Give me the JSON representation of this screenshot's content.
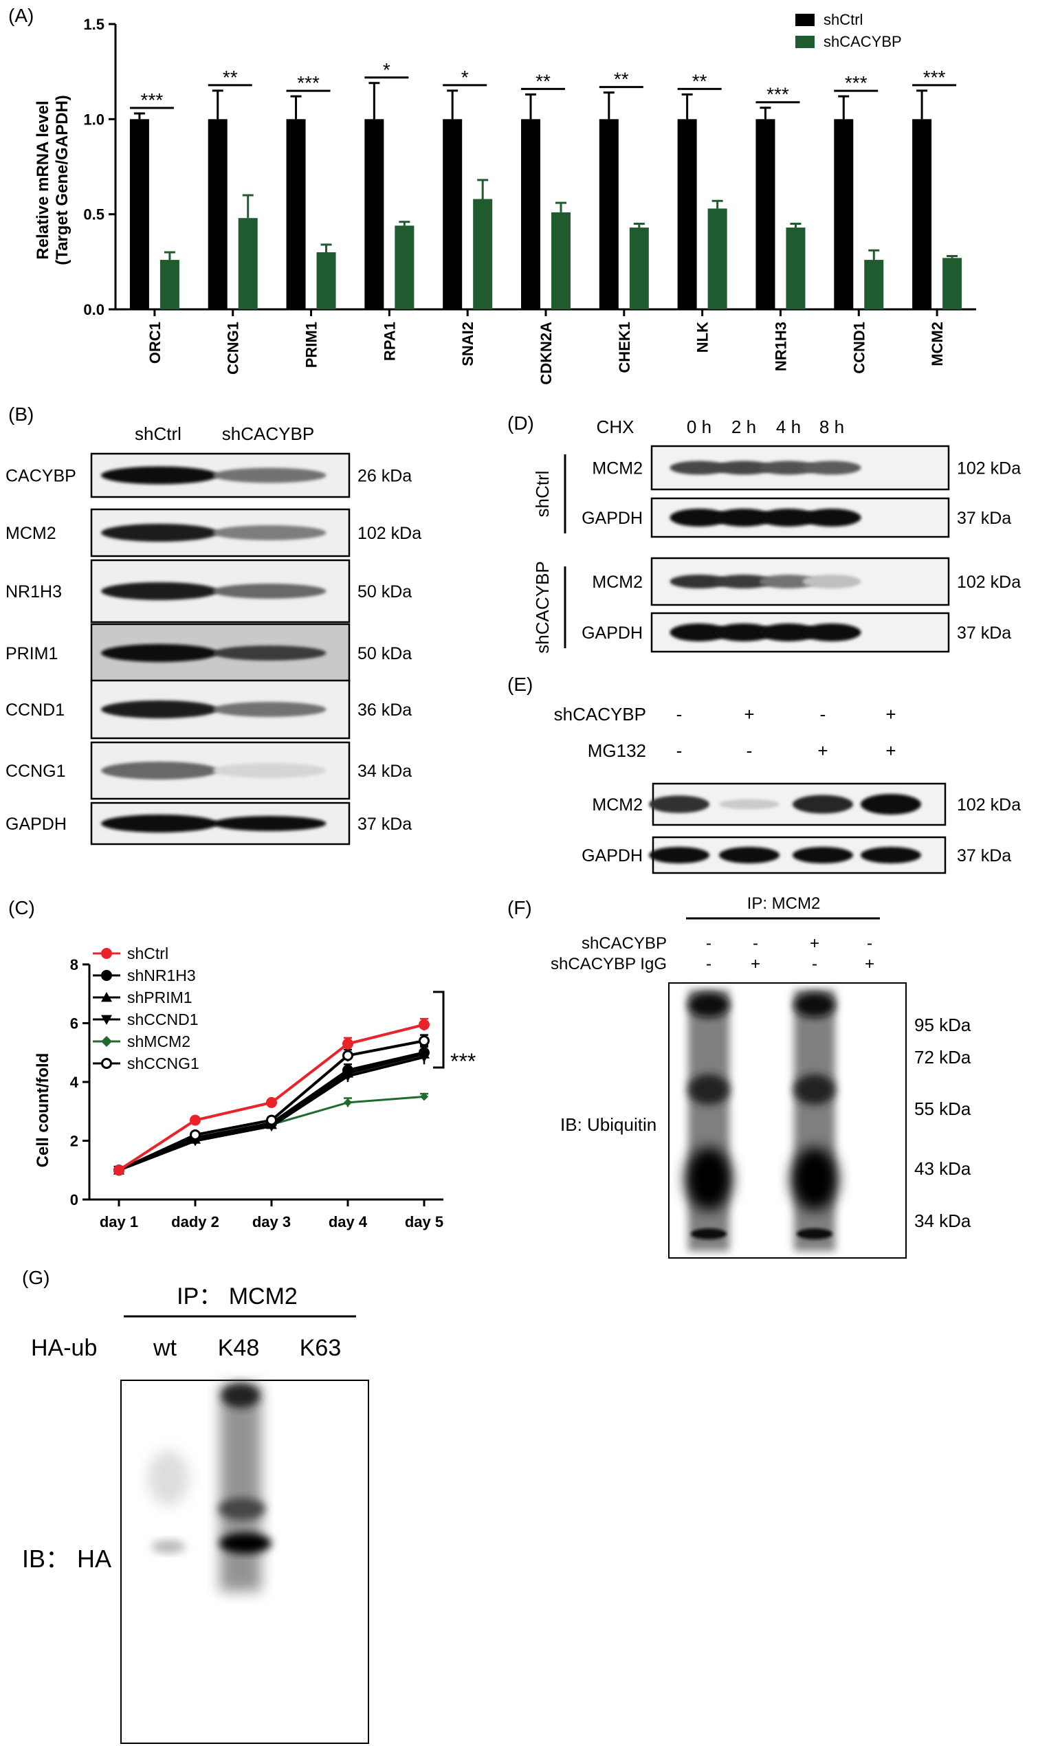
{
  "panels": {
    "A": {
      "label": "(A)",
      "ylabel_line1": "Relative mRNA level",
      "ylabel_line2": "(Target Gene/GAPDH)",
      "legend": [
        {
          "name": "shCtrl",
          "color": "#000000"
        },
        {
          "name": "shCACYBP",
          "color": "#1f5b2e"
        }
      ]
    },
    "B": {
      "label": "(B)",
      "cols": [
        "shCtrl",
        "shCACYBP"
      ],
      "rows": [
        {
          "name": "CACYBP",
          "size": "26 kDa",
          "ctrl": 1.0,
          "kd": 0.55
        },
        {
          "name": "MCM2",
          "size": "102 kDa",
          "ctrl": 0.95,
          "kd": 0.5
        },
        {
          "name": "NR1H3",
          "size": "50 kDa",
          "ctrl": 0.95,
          "kd": 0.6
        },
        {
          "name": "PRIM1",
          "size": "50 kDa",
          "ctrl": 1.0,
          "kd": 0.8
        },
        {
          "name": "CCND1",
          "size": "36 kDa",
          "ctrl": 0.95,
          "kd": 0.55
        },
        {
          "name": "CCNG1",
          "size": "34 kDa",
          "ctrl": 0.6,
          "kd": 0.1
        },
        {
          "name": "GAPDH",
          "size": "37 kDa",
          "ctrl": 1.0,
          "kd": 1.0
        }
      ]
    },
    "C": {
      "label": "(C)",
      "significance": "***"
    },
    "D": {
      "label": "(D)",
      "treatment": "CHX",
      "times": [
        "0 h",
        "2 h",
        "4 h",
        "8 h"
      ],
      "groups": [
        {
          "name": "shCtrl",
          "blots": [
            {
              "name": "MCM2",
              "size": "102 kDa",
              "intensity": [
                0.75,
                0.75,
                0.7,
                0.65
              ]
            },
            {
              "name": "GAPDH",
              "size": "37 kDa",
              "intensity": [
                1.0,
                1.0,
                1.0,
                1.0
              ]
            }
          ]
        },
        {
          "name": "shCACYBP",
          "blots": [
            {
              "name": "MCM2",
              "size": "102 kDa",
              "intensity": [
                0.85,
                0.8,
                0.55,
                0.2
              ]
            },
            {
              "name": "GAPDH",
              "size": "37 kDa",
              "intensity": [
                1.0,
                1.0,
                1.0,
                1.0
              ]
            }
          ]
        }
      ]
    },
    "E": {
      "label": "(E)",
      "conditions": [
        {
          "name": "shCACYBP",
          "signs": [
            "-",
            "+",
            "-",
            "+"
          ]
        },
        {
          "name": "MG132",
          "signs": [
            "-",
            "-",
            "+",
            "+"
          ]
        }
      ],
      "blots": [
        {
          "name": "MCM2",
          "size": "102 kDa",
          "intensity": [
            0.85,
            0.15,
            0.9,
            1.0
          ]
        },
        {
          "name": "GAPDH",
          "size": "37 kDa",
          "intensity": [
            1.0,
            1.0,
            1.0,
            1.0
          ]
        }
      ]
    },
    "F": {
      "label": "(F)",
      "ip": "IP: MCM2",
      "conditions": [
        {
          "name": "shCACYBP",
          "signs": [
            "-",
            "-",
            "+",
            "-"
          ]
        },
        {
          "name": "shCACYBP IgG",
          "signs": [
            "-",
            "+",
            "-",
            "+"
          ]
        }
      ],
      "ib": "IB: Ubiquitin",
      "markers": [
        "95 kDa",
        "72 kDa",
        "55 kDa",
        "43 kDa",
        "34 kDa"
      ]
    },
    "G": {
      "label": "(G)",
      "ip": "IP： MCM2",
      "row_label": "HA-ub",
      "lanes": [
        "wt",
        "K48",
        "K63"
      ],
      "ib": "IB： HA"
    }
  },
  "chart_data": [
    {
      "panel": "A",
      "type": "bar",
      "categories": [
        "ORC1",
        "CCNG1",
        "PRIM1",
        "RPA1",
        "SNAI2",
        "CDKN2A",
        "CHEK1",
        "NLK",
        "NR1H3",
        "CCND1",
        "MCM2"
      ],
      "series": [
        {
          "name": "shCtrl",
          "values": [
            1.0,
            1.0,
            1.0,
            1.0,
            1.0,
            1.0,
            1.0,
            1.0,
            1.0,
            1.0,
            1.0
          ],
          "errors": [
            0.03,
            0.15,
            0.12,
            0.19,
            0.15,
            0.13,
            0.14,
            0.13,
            0.06,
            0.12,
            0.15
          ]
        },
        {
          "name": "shCACYBP",
          "values": [
            0.26,
            0.48,
            0.3,
            0.44,
            0.58,
            0.51,
            0.43,
            0.53,
            0.43,
            0.26,
            0.27
          ],
          "errors": [
            0.04,
            0.12,
            0.04,
            0.02,
            0.1,
            0.05,
            0.02,
            0.04,
            0.02,
            0.05,
            0.01
          ]
        }
      ],
      "significance": [
        "***",
        "**",
        "***",
        "*",
        "*",
        "**",
        "**",
        "**",
        "***",
        "***",
        "***"
      ],
      "ylim": [
        0,
        1.5
      ],
      "yticks": [
        "0.0",
        "0.5",
        "1.0",
        "1.5"
      ]
    },
    {
      "panel": "C",
      "type": "line",
      "xlabel": "",
      "ylabel": "Cell count/fold",
      "categories": [
        "day 1",
        "dady 2",
        "day 3",
        "day 4",
        "day 5"
      ],
      "ylim": [
        0,
        8
      ],
      "yticks": [
        "0",
        "2",
        "4",
        "6",
        "8"
      ],
      "series": [
        {
          "name": "shCtrl",
          "color": "#e8232a",
          "marker": "circle",
          "values": [
            1.0,
            2.7,
            3.3,
            5.3,
            5.95
          ],
          "errors": [
            0,
            0,
            0,
            0.2,
            0.2
          ]
        },
        {
          "name": "shNR1H3",
          "color": "#000000",
          "marker": "circle",
          "values": [
            1.0,
            2.1,
            2.6,
            4.4,
            5.0
          ],
          "errors": [
            0,
            0,
            0,
            0.2,
            0.25
          ]
        },
        {
          "name": "shPRIM1",
          "color": "#000000",
          "marker": "triangle-up",
          "values": [
            1.0,
            2.05,
            2.55,
            4.3,
            4.95
          ],
          "errors": [
            0,
            0,
            0,
            0.2,
            0.25
          ]
        },
        {
          "name": "shCCND1",
          "color": "#000000",
          "marker": "triangle-down",
          "values": [
            1.0,
            2.0,
            2.5,
            4.2,
            4.85
          ],
          "errors": [
            0,
            0,
            0,
            0.2,
            0.25
          ]
        },
        {
          "name": "shMCM2",
          "color": "#1f6b2e",
          "marker": "diamond",
          "values": [
            1.0,
            2.1,
            2.55,
            3.3,
            3.5
          ],
          "errors": [
            0,
            0,
            0,
            0.15,
            0.1
          ]
        },
        {
          "name": "shCCNG1",
          "color": "#000000",
          "marker": "open-circle",
          "values": [
            1.0,
            2.2,
            2.7,
            4.9,
            5.4
          ],
          "errors": [
            0,
            0,
            0,
            0.2,
            0.2
          ]
        }
      ]
    }
  ]
}
